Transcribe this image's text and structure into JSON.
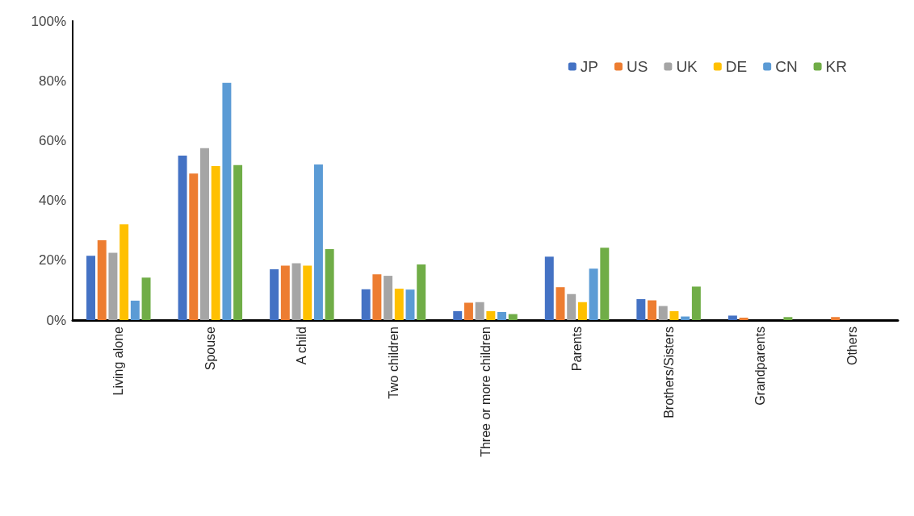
{
  "chart_data": {
    "type": "bar",
    "categories": [
      "Living alone",
      "Spouse",
      "A child",
      "Two children",
      "Three or more children",
      "Parents",
      "Brothers/Sisters",
      "Grandparents",
      "Others"
    ],
    "series": [
      {
        "name": "JP",
        "color": "#4472c4",
        "values": [
          21.5,
          55,
          17,
          10.3,
          3,
          21.2,
          7,
          1.5,
          0
        ]
      },
      {
        "name": "US",
        "color": "#ed7d31",
        "values": [
          26.7,
          49,
          18.2,
          15.3,
          5.8,
          11,
          6.6,
          0.8,
          1
        ]
      },
      {
        "name": "UK",
        "color": "#a5a5a5",
        "values": [
          22.5,
          57.5,
          19,
          14.8,
          6,
          8.7,
          4.7,
          0,
          0
        ]
      },
      {
        "name": "DE",
        "color": "#ffc000",
        "values": [
          32,
          51.5,
          18.2,
          10.5,
          3,
          6,
          3,
          0,
          0
        ]
      },
      {
        "name": "CN",
        "color": "#5b9bd5",
        "values": [
          6.5,
          79.3,
          52,
          10.2,
          2.7,
          17.2,
          1.2,
          0,
          0
        ]
      },
      {
        "name": "KR",
        "color": "#70ad47",
        "values": [
          14.2,
          51.8,
          23.7,
          18.6,
          2,
          24.2,
          11.2,
          1,
          0
        ]
      }
    ],
    "ylim": [
      0,
      100
    ],
    "yticks": [
      {
        "value": 0,
        "label": "0%"
      },
      {
        "value": 20,
        "label": "20%"
      },
      {
        "value": 40,
        "label": "40%"
      },
      {
        "value": 60,
        "label": "60%"
      },
      {
        "value": 80,
        "label": "80%"
      },
      {
        "value": 100,
        "label": "100%"
      }
    ],
    "grid": false,
    "legend": "top right"
  }
}
